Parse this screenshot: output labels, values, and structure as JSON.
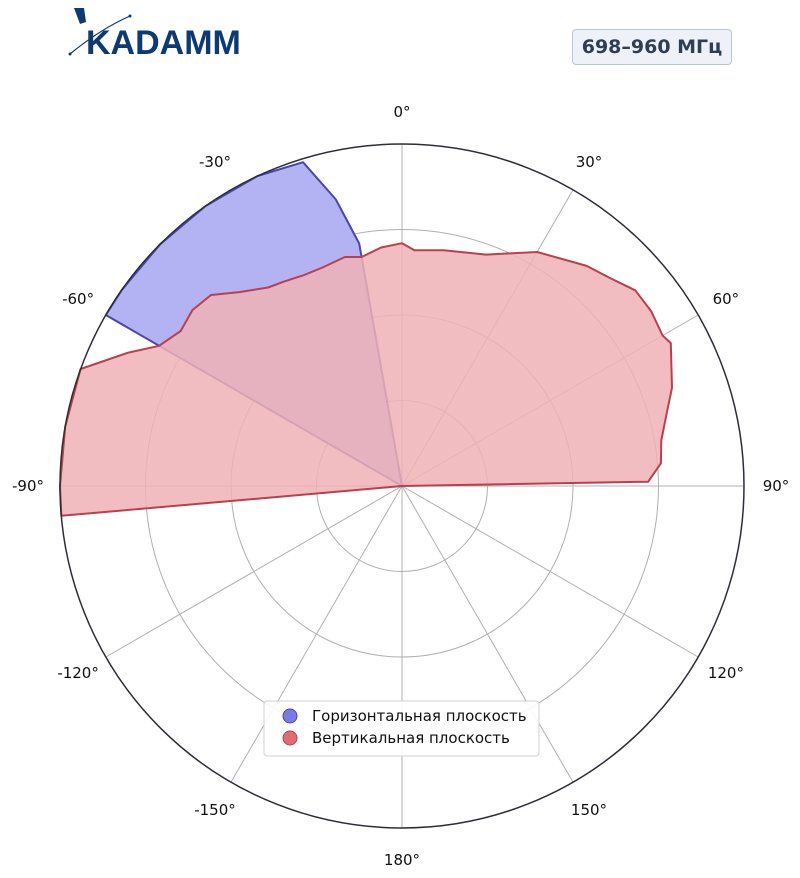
{
  "brand": {
    "name": "KADAMM",
    "color": "#0d3a73"
  },
  "badge": {
    "text": "698–960 МГц"
  },
  "chart_data": {
    "type": "polar-area",
    "angular_ticks": [
      "0°",
      "30°",
      "60°",
      "90°",
      "120°",
      "150°",
      "180°",
      "-150°",
      "-120°",
      "-90°",
      "-60°",
      "-30°"
    ],
    "angle_zero": "top",
    "angle_direction": "clockwise",
    "radial_max": 1.0,
    "radial_gridlines": [
      0.25,
      0.5,
      0.75,
      1.0
    ],
    "grid": true,
    "legend_position": "bottom-center",
    "series": [
      {
        "name": "Горизонтальная плоскость",
        "color": "#7b7be6",
        "fill": "#b3b3f3",
        "stroke": "#4b45b0",
        "points": [
          [
            0,
            0
          ],
          [
            -60,
            1.0
          ],
          [
            -55,
            1.0
          ],
          [
            -45,
            1.0
          ],
          [
            -35,
            1.0
          ],
          [
            -25,
            1.0
          ],
          [
            -17,
            0.99
          ],
          [
            -13,
            0.86
          ],
          [
            -10,
            0.72
          ],
          [
            0,
            0
          ]
        ]
      },
      {
        "name": "Вертикальная плоскость",
        "color": "#e06c75",
        "fill": "#f0b1b6",
        "stroke": "#b9404c",
        "points": [
          [
            0,
            0
          ],
          [
            -95,
            1.0
          ],
          [
            -90,
            1.0
          ],
          [
            -80,
            1.0
          ],
          [
            -70,
            1.0
          ],
          [
            -64,
            0.89
          ],
          [
            -60,
            0.82
          ],
          [
            -55,
            0.79
          ],
          [
            -50,
            0.8
          ],
          [
            -45,
            0.79
          ],
          [
            -40,
            0.74
          ],
          [
            -34,
            0.7
          ],
          [
            -30,
            0.69
          ],
          [
            -25,
            0.68
          ],
          [
            -20,
            0.68
          ],
          [
            -14,
            0.69
          ],
          [
            -10,
            0.68
          ],
          [
            -5,
            0.7
          ],
          [
            0,
            0.71
          ],
          [
            3,
            0.69
          ],
          [
            10,
            0.7
          ],
          [
            20,
            0.72
          ],
          [
            30,
            0.79
          ],
          [
            40,
            0.84
          ],
          [
            45,
            0.86
          ],
          [
            50,
            0.89
          ],
          [
            55,
            0.89
          ],
          [
            60,
            0.88
          ],
          [
            62,
            0.89
          ],
          [
            70,
            0.84
          ],
          [
            75,
            0.8
          ],
          [
            80,
            0.77
          ],
          [
            85,
            0.76
          ],
          [
            89,
            0.72
          ],
          [
            90,
            0
          ]
        ]
      }
    ]
  }
}
